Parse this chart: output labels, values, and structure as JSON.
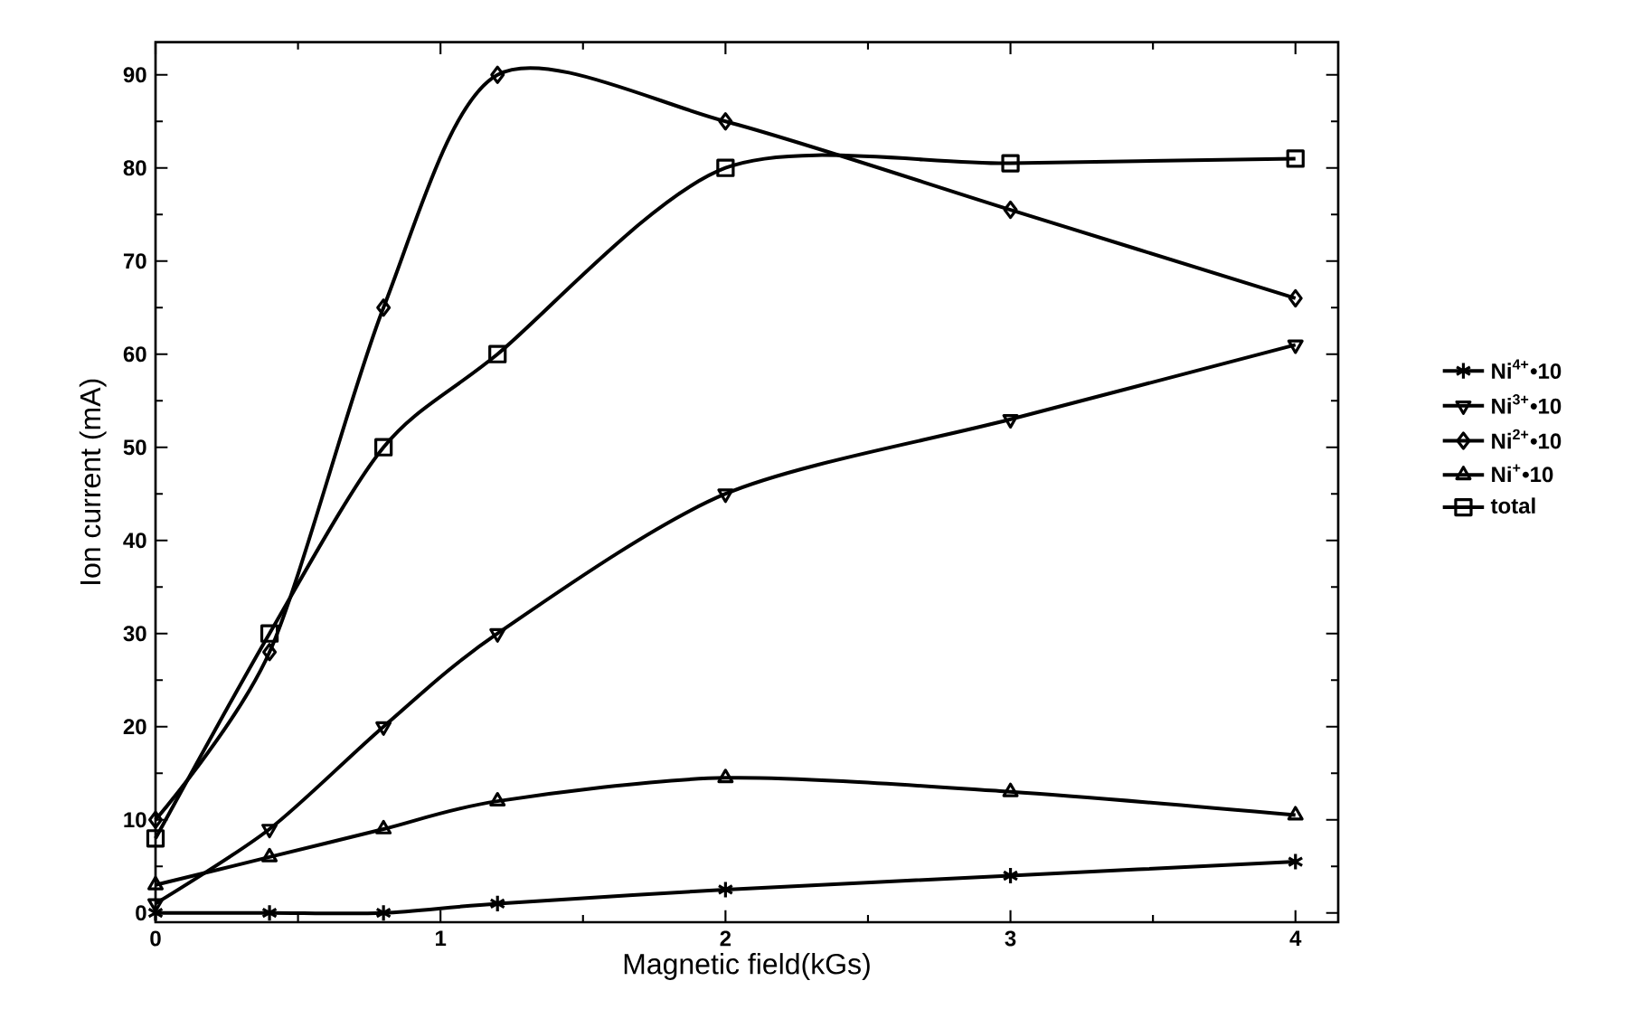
{
  "chart_data": {
    "type": "line",
    "xlabel": "Magnetic field(kGs)",
    "ylabel": "Ion current (mA)",
    "x": [
      0,
      0.4,
      0.8,
      1.2,
      2,
      3,
      4
    ],
    "series": [
      {
        "name": "Ni$^{4+}$•10",
        "color": "#000000",
        "marker": "cross",
        "values": [
          0,
          0,
          0,
          1,
          2.5,
          4,
          5.5
        ]
      },
      {
        "name": "Ni$^{3+}$•10",
        "color": "#000000",
        "marker": "triangle-down",
        "values": [
          1,
          9,
          20,
          30,
          45,
          53,
          61
        ]
      },
      {
        "name": "Ni$^{2+}$•10",
        "color": "#000000",
        "marker": "diamond",
        "values": [
          10,
          28,
          65,
          90,
          85,
          75.5,
          66
        ]
      },
      {
        "name": "Ni$^{+}$•10",
        "color": "#000000",
        "marker": "triangle",
        "values": [
          3,
          6,
          9,
          12,
          14.5,
          13,
          10.5
        ]
      },
      {
        "name": "total",
        "color": "#000000",
        "marker": "square",
        "values": [
          8,
          30,
          50,
          60,
          80,
          80.5,
          81
        ]
      }
    ],
    "xlim": [
      0,
      4.15
    ],
    "ylim": [
      -1,
      93.5
    ],
    "xticks": [
      0,
      1,
      2,
      3,
      4
    ],
    "yticks": [
      0,
      10,
      20,
      30,
      40,
      50,
      60,
      70,
      80,
      90
    ],
    "grid": false,
    "legend": "right",
    "line_style": "solid"
  }
}
